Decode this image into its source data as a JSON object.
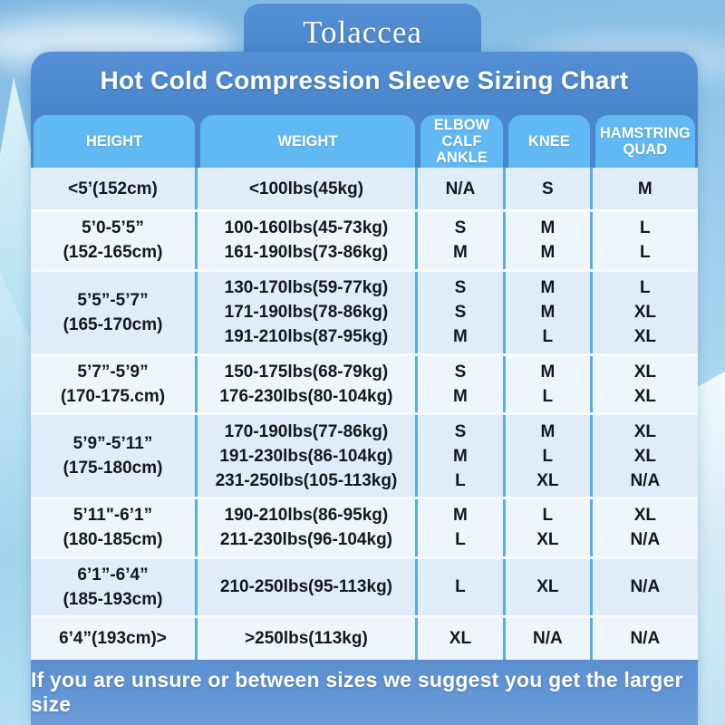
{
  "brand": "Tolaccea",
  "title": "Hot Cold Compression Sleeve Sizing Chart",
  "footer": "If you are unsure or between sizes we suggest you get the larger size",
  "colors": {
    "title_bar": "#4a86cb",
    "title_bar_light": "#5590d7",
    "header_tab": "#60b9f2",
    "separator": "#52afe0",
    "row_odd": "#e0ecf8",
    "row_even": "#eef5fc",
    "row_sep": "#f7fbfe",
    "footer_band": "#5a8fd2",
    "text_dark": "#14181c"
  },
  "chart_data": {
    "type": "table",
    "title": "Hot Cold Compression Sleeve Sizing Chart",
    "columns": [
      {
        "name": "HEIGHT",
        "lines": [
          "HEIGHT"
        ]
      },
      {
        "name": "WEIGHT",
        "lines": [
          "WEIGHT"
        ]
      },
      {
        "name": "ELBOW CALF ANKLE",
        "lines": [
          "ELBOW",
          "CALF",
          "ANKLE"
        ]
      },
      {
        "name": "KNEE",
        "lines": [
          "KNEE"
        ]
      },
      {
        "name": "HAMSTRING QUAD",
        "lines": [
          "HAMSTRING",
          "QUAD"
        ]
      }
    ],
    "rows": [
      {
        "height": [
          "<5’(152cm)"
        ],
        "weight": [
          "<100lbs(45kg)"
        ],
        "elbow_calf_ankle": [
          "N/A"
        ],
        "knee": [
          "S"
        ],
        "hamstring_quad": [
          "M"
        ]
      },
      {
        "height": [
          "5’0-5’5”",
          "(152-165cm)"
        ],
        "weight": [
          "100-160lbs(45-73kg)",
          "161-190lbs(73-86kg)"
        ],
        "elbow_calf_ankle": [
          "S",
          "M"
        ],
        "knee": [
          "M",
          "M"
        ],
        "hamstring_quad": [
          "L",
          "L"
        ]
      },
      {
        "height": [
          "5’5”-5’7”",
          "(165-170cm)"
        ],
        "weight": [
          "130-170lbs(59-77kg)",
          "171-190lbs(78-86kg)",
          "191-210lbs(87-95kg)"
        ],
        "elbow_calf_ankle": [
          "S",
          "S",
          "M"
        ],
        "knee": [
          "M",
          "M",
          "L"
        ],
        "hamstring_quad": [
          "L",
          "XL",
          "XL"
        ]
      },
      {
        "height": [
          "5’7”-5’9”",
          "(170-175.cm)"
        ],
        "weight": [
          "150-175lbs(68-79kg)",
          "176-230lbs(80-104kg)"
        ],
        "elbow_calf_ankle": [
          "S",
          "M"
        ],
        "knee": [
          "M",
          "L"
        ],
        "hamstring_quad": [
          "XL",
          "XL"
        ]
      },
      {
        "height": [
          "5’9”-5’11”",
          "(175-180cm)"
        ],
        "weight": [
          "170-190lbs(77-86kg)",
          "191-230lbs(86-104kg)",
          "231-250lbs(105-113kg)"
        ],
        "elbow_calf_ankle": [
          "S",
          "M",
          "L"
        ],
        "knee": [
          "M",
          "L",
          "XL"
        ],
        "hamstring_quad": [
          "XL",
          "XL",
          "N/A"
        ]
      },
      {
        "height": [
          "5’11\"-6’1”",
          "(180-185cm)"
        ],
        "weight": [
          "190-210lbs(86-95kg)",
          "211-230lbs(96-104kg)"
        ],
        "elbow_calf_ankle": [
          "M",
          "L"
        ],
        "knee": [
          "L",
          "XL"
        ],
        "hamstring_quad": [
          "XL",
          "N/A"
        ]
      },
      {
        "height": [
          "6’1”-6’4”",
          "(185-193cm)"
        ],
        "weight": [
          "210-250lbs(95-113kg)"
        ],
        "elbow_calf_ankle": [
          "L"
        ],
        "knee": [
          "XL"
        ],
        "hamstring_quad": [
          "N/A"
        ]
      },
      {
        "height": [
          "6’4”(193cm)>"
        ],
        "weight": [
          ">250lbs(113kg)"
        ],
        "elbow_calf_ankle": [
          "XL"
        ],
        "knee": [
          "N/A"
        ],
        "hamstring_quad": [
          "N/A"
        ]
      }
    ]
  }
}
